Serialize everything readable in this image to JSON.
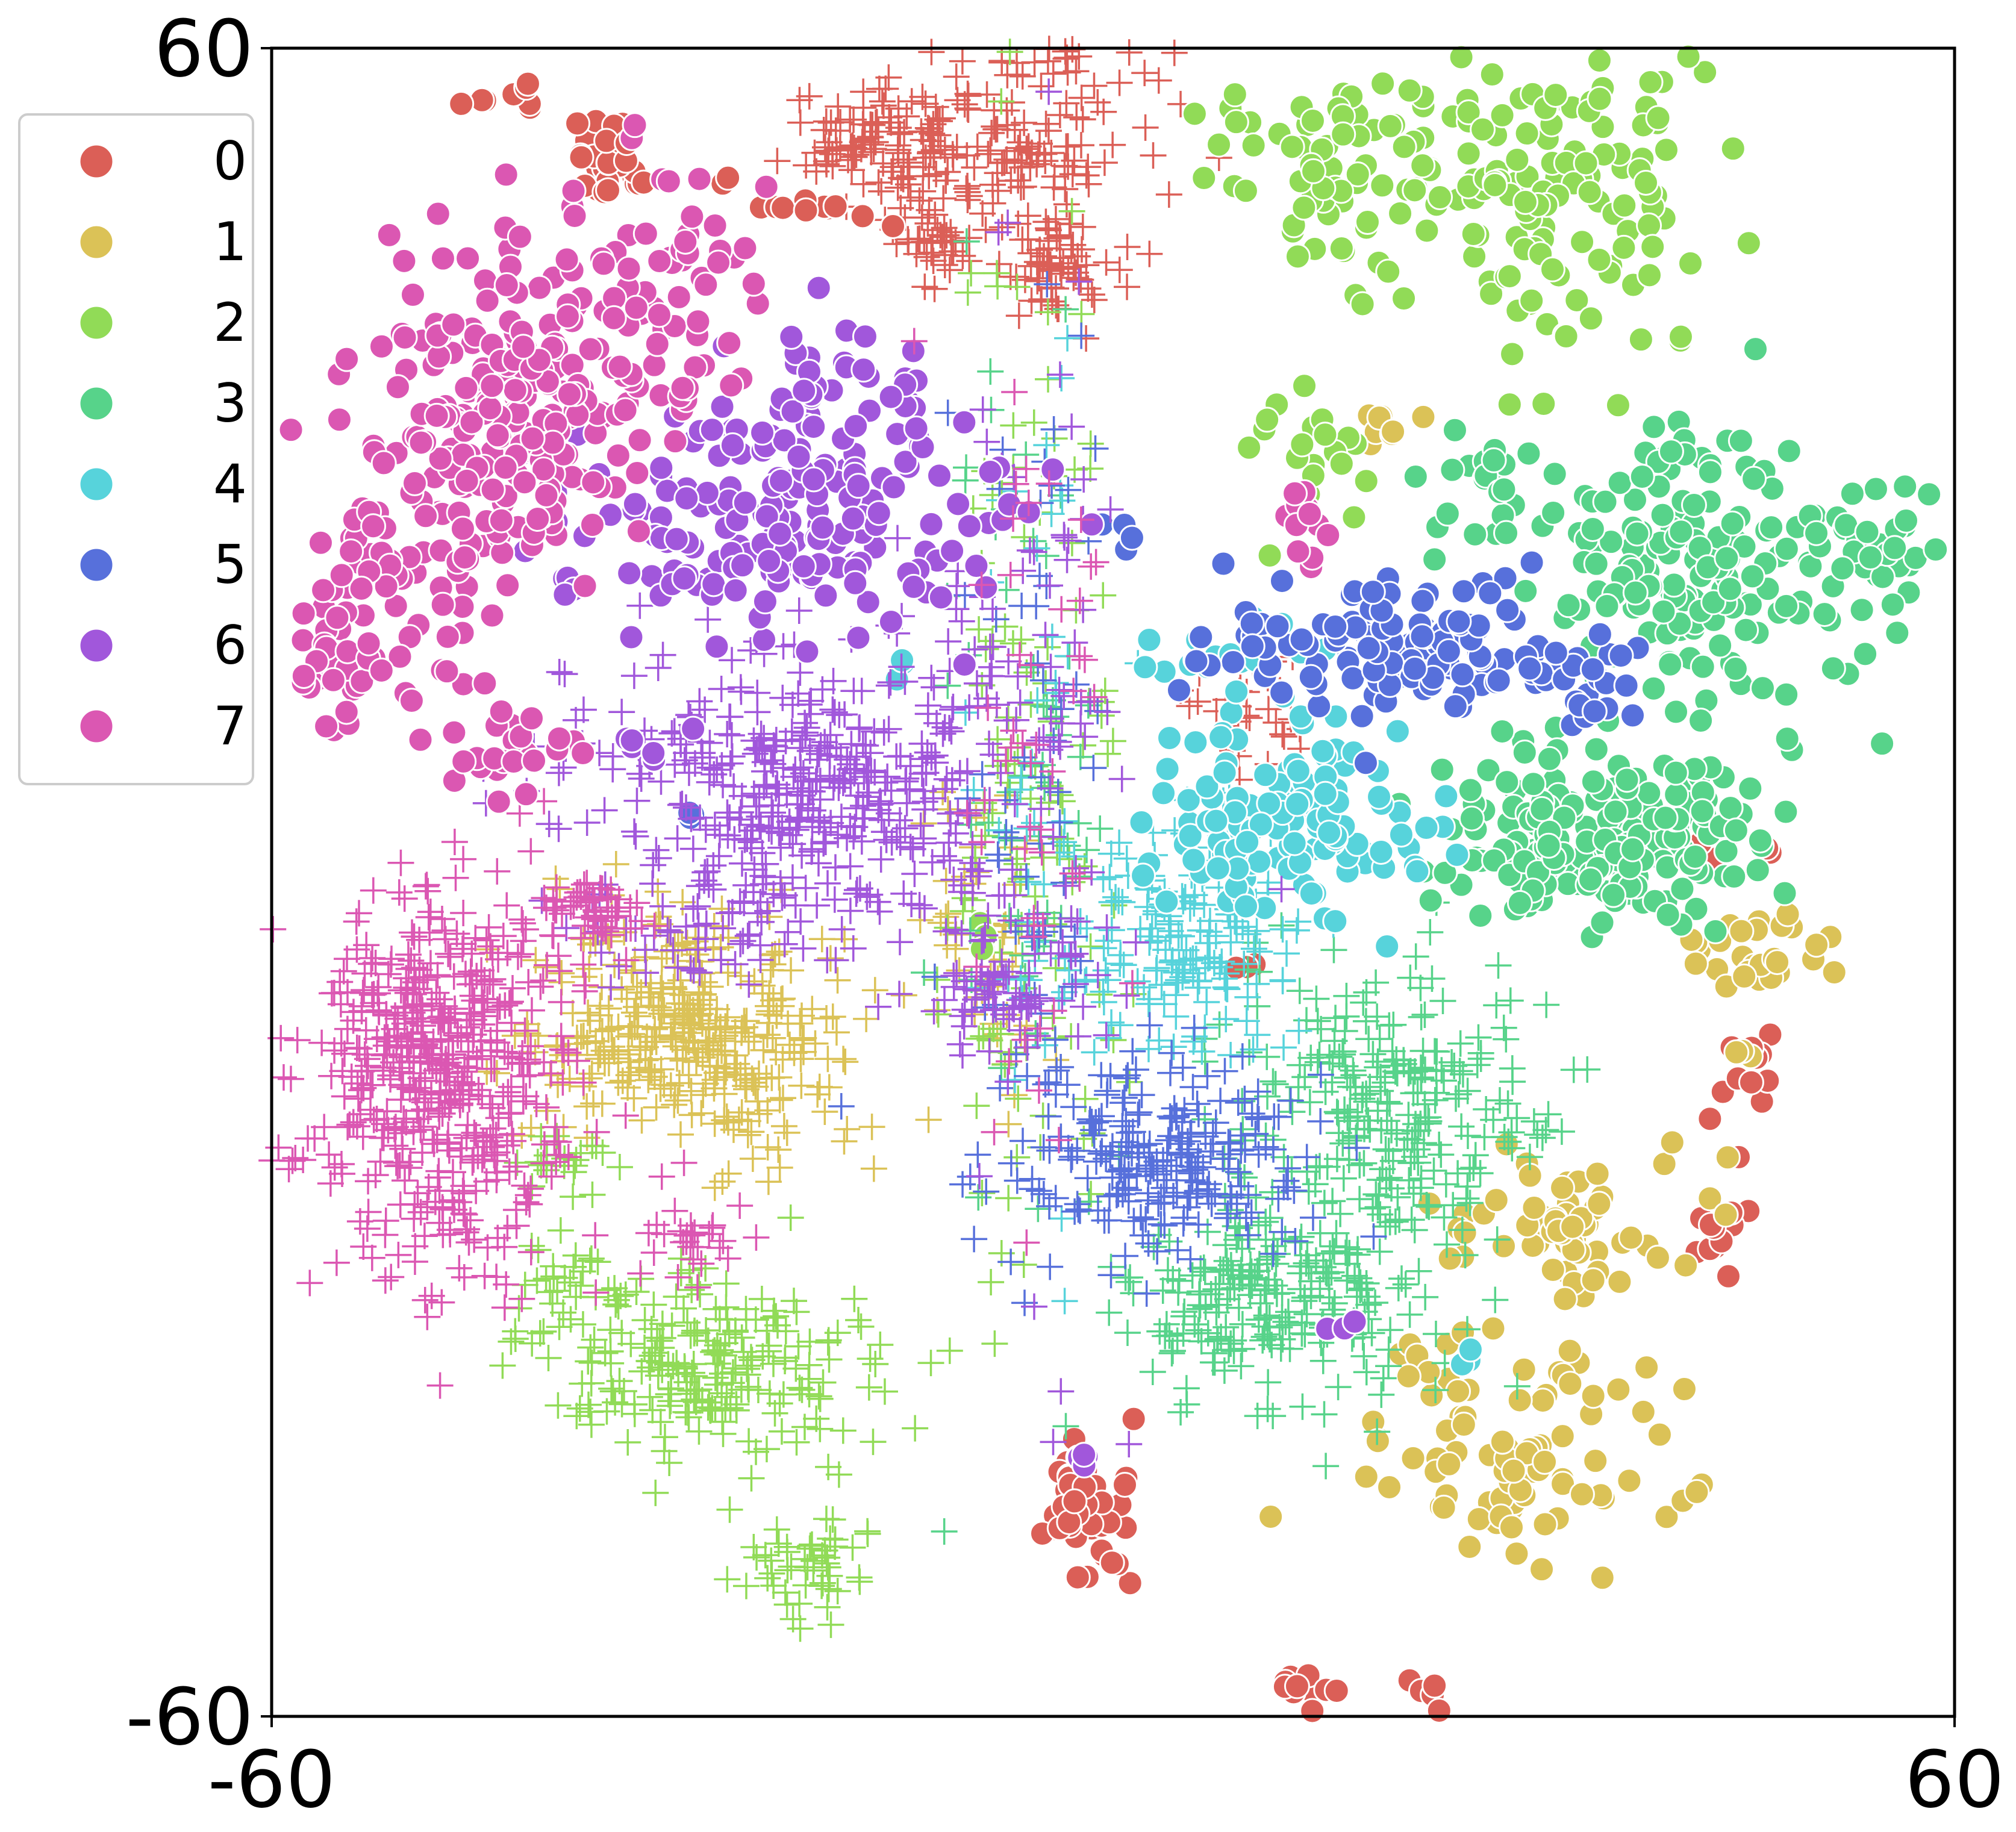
{
  "chart_data": {
    "type": "scatter",
    "title": "",
    "xlabel": "",
    "ylabel": "",
    "xlim": [
      -60,
      60
    ],
    "ylim": [
      -60,
      60
    ],
    "x_ticks": [
      {
        "value": -60,
        "label": "-60"
      },
      {
        "value": 60,
        "label": "60"
      }
    ],
    "y_ticks": [
      {
        "value": -60,
        "label": "-60"
      },
      {
        "value": 60,
        "label": "60"
      }
    ],
    "grid": false,
    "legend_position": "left",
    "marker_styles": [
      "circle",
      "plus"
    ],
    "series": [
      {
        "name": "0",
        "color": "#db5f57",
        "circle_clusters": [
          [
            -36,
            52,
            2,
            2.5,
            40
          ],
          [
            -22,
            48,
            4,
            2,
            12
          ],
          [
            -2,
            -45,
            2.5,
            4,
            55
          ],
          [
            13,
            -58,
            3,
            1.5,
            10
          ],
          [
            22,
            -58,
            2,
            1.5,
            6
          ],
          [
            -43,
            56,
            2,
            1,
            8
          ],
          [
            44,
            3,
            3,
            1,
            10
          ],
          [
            45,
            -15,
            2,
            3,
            12
          ],
          [
            43,
            -25,
            2,
            3,
            12
          ],
          [
            9,
            -6,
            1,
            1,
            3
          ]
        ],
        "plus_clusters": [
          [
            -10,
            53,
            11,
            4,
            160
          ],
          [
            -13,
            46,
            3,
            2,
            40
          ],
          [
            -4,
            44,
            3,
            4,
            70
          ],
          [
            -18,
            54,
            4,
            3,
            40
          ],
          [
            10,
            12,
            4,
            4,
            30
          ],
          [
            -5,
            59,
            8,
            2,
            35
          ]
        ]
      },
      {
        "name": "1",
        "color": "#dbc257",
        "circle_clusters": [
          [
            29,
            -41,
            9,
            7,
            90
          ],
          [
            33,
            -25,
            8,
            5,
            60
          ],
          [
            46,
            -5,
            5,
            3,
            30
          ],
          [
            45,
            -12,
            1,
            1,
            3
          ],
          [
            18,
            34,
            3,
            4,
            8
          ]
        ],
        "plus_clusters": [
          [
            -30,
            -11,
            10,
            7,
            350
          ],
          [
            -9,
            -4,
            4,
            10,
            50
          ]
        ]
      },
      {
        "name": "2",
        "color": "#91db57",
        "circle_clusters": [
          [
            24,
            52,
            13,
            8,
            130
          ],
          [
            34,
            48,
            7,
            12,
            60
          ],
          [
            14,
            31,
            5,
            6,
            20
          ],
          [
            13,
            52,
            4,
            3,
            20
          ],
          [
            -9,
            -4,
            1,
            1,
            3
          ]
        ],
        "plus_clusters": [
          [
            -28,
            -35,
            10,
            6,
            220
          ],
          [
            -22,
            -49,
            4,
            3,
            50
          ],
          [
            -39,
            -30,
            4,
            3,
            30
          ],
          [
            -38,
            -20,
            3,
            2,
            20
          ],
          [
            -6,
            8,
            5,
            30,
            120
          ]
        ]
      },
      {
        "name": "3",
        "color": "#57d38a",
        "circle_clusters": [
          [
            35,
            3,
            10,
            5,
            210
          ],
          [
            42,
            23,
            9,
            9,
            170
          ],
          [
            55,
            24,
            3,
            3,
            25
          ],
          [
            26,
            29,
            3,
            3,
            18
          ]
        ],
        "plus_clusters": [
          [
            12,
            -30,
            10,
            6,
            230
          ],
          [
            19,
            -16,
            10,
            8,
            250
          ],
          [
            -6,
            8,
            5,
            30,
            60
          ]
        ]
      },
      {
        "name": "4",
        "color": "#57d3db",
        "circle_clusters": [
          [
            13,
            4,
            9,
            6,
            130
          ],
          [
            9,
            16,
            4,
            3,
            18
          ],
          [
            -15,
            16,
            1,
            1,
            3
          ],
          [
            25,
            -35,
            1,
            1,
            3
          ]
        ],
        "plus_clusters": [
          [
            5,
            -4,
            7,
            7,
            170
          ],
          [
            -6,
            8,
            5,
            30,
            40
          ]
        ]
      },
      {
        "name": "5",
        "color": "#5770db",
        "circle_clusters": [
          [
            19,
            17,
            10,
            4,
            130
          ],
          [
            34,
            14,
            4,
            3,
            20
          ],
          [
            -30,
            5,
            1,
            1,
            3
          ],
          [
            1,
            25,
            2,
            1,
            4
          ]
        ],
        "plus_clusters": [
          [
            3,
            -20,
            9,
            6,
            230
          ],
          [
            -6,
            8,
            5,
            30,
            60
          ]
        ]
      },
      {
        "name": "6",
        "color": "#a157db",
        "circle_clusters": [
          [
            -23,
            25,
            14,
            6,
            160
          ],
          [
            -20,
            34,
            7,
            5,
            55
          ],
          [
            -2,
            -41,
            1,
            1,
            5
          ],
          [
            -34,
            10,
            3,
            1,
            6
          ],
          [
            16,
            -32,
            1,
            1,
            3
          ]
        ],
        "plus_clusters": [
          [
            -22,
            7,
            13,
            9,
            420
          ],
          [
            -8,
            -8,
            5,
            4,
            60
          ],
          [
            -29,
            -4,
            7,
            3,
            40
          ],
          [
            -6,
            8,
            5,
            30,
            90
          ]
        ]
      },
      {
        "name": "7",
        "color": "#db57b2",
        "circle_clusters": [
          [
            -42,
            35,
            9,
            10,
            230
          ],
          [
            -51,
            22,
            5,
            6,
            60
          ],
          [
            -32,
            42,
            6,
            7,
            55
          ],
          [
            -55,
            15,
            4,
            4,
            35
          ],
          [
            -43,
            10,
            5,
            3,
            25
          ],
          [
            14,
            26,
            3,
            3,
            12
          ]
        ],
        "plus_clusters": [
          [
            -48,
            -14,
            8,
            12,
            520
          ],
          [
            -37,
            -2,
            3,
            2,
            50
          ],
          [
            -30,
            -25,
            3,
            3,
            30
          ],
          [
            -6,
            8,
            5,
            30,
            50
          ]
        ]
      }
    ]
  }
}
